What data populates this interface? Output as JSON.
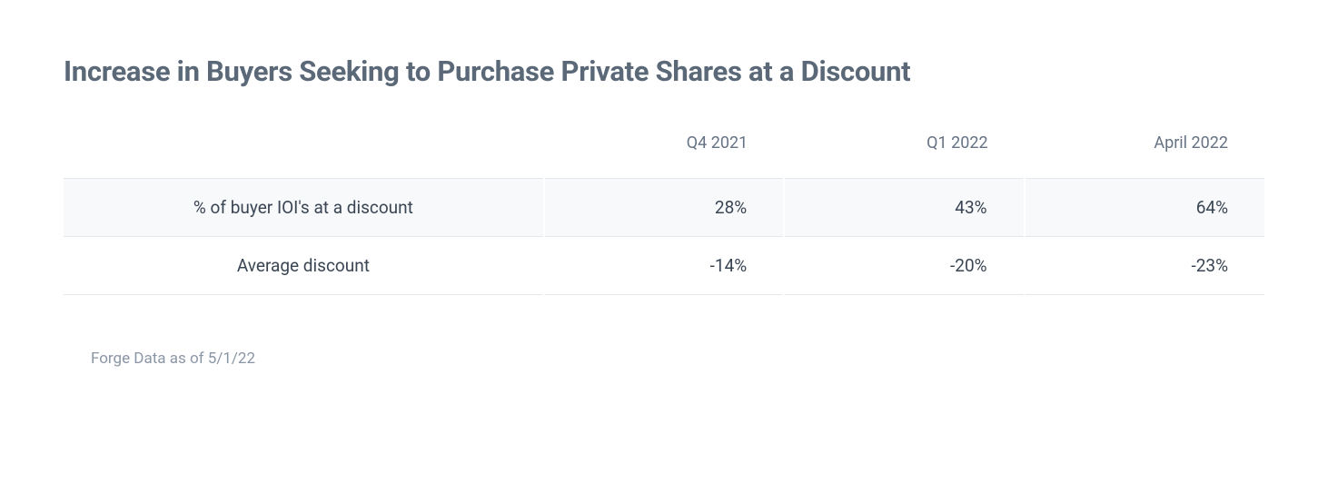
{
  "title": "Increase in Buyers Seeking to Purchase Private Shares at a Discount",
  "table": {
    "columns": [
      "Q4 2021",
      "Q1 2022",
      "April 2022"
    ],
    "rows": [
      {
        "label": "% of buyer IOI's at a discount",
        "values": [
          "28%",
          "43%",
          "64%"
        ]
      },
      {
        "label": "Average discount",
        "values": [
          "-14%",
          "-20%",
          "-23%"
        ]
      }
    ],
    "alt_row_bg": "#f8f9fb",
    "border_color": "#e4e7ec",
    "header_text_color": "#667385",
    "body_text_color": "#3a4554"
  },
  "footnote": "Forge Data as of 5/1/22",
  "style": {
    "title_color": "#5a6878",
    "title_fontsize": 31,
    "header_fontsize": 18,
    "body_fontsize": 19,
    "footnote_fontsize": 17,
    "footnote_color": "#8a95a5",
    "background_color": "#ffffff"
  }
}
